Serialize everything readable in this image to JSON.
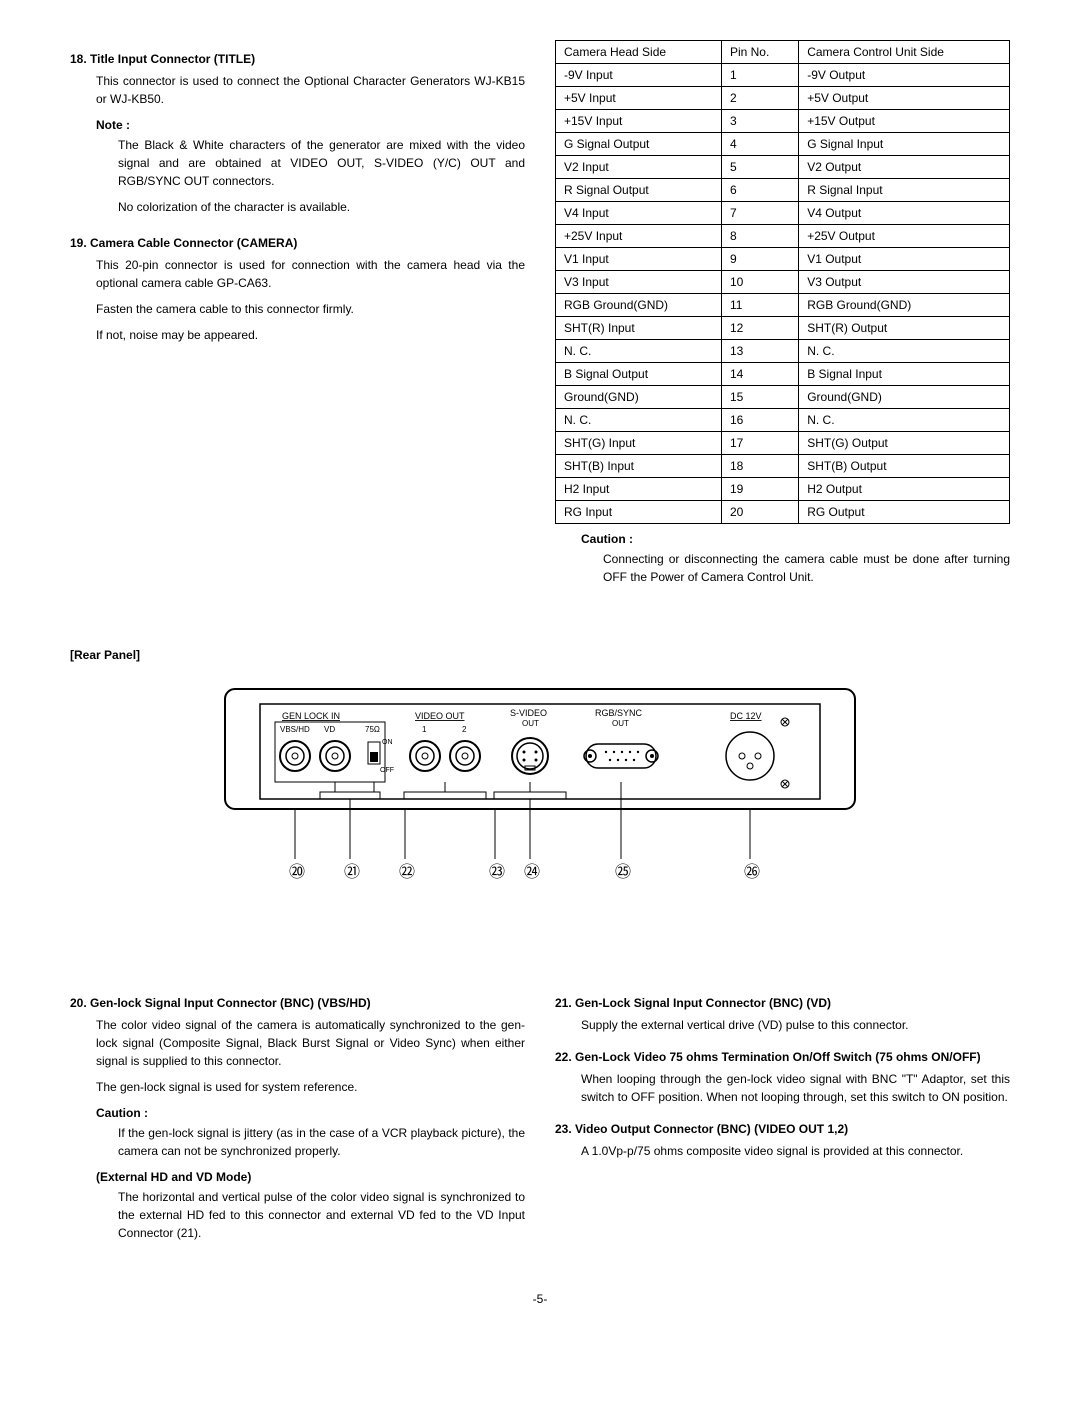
{
  "section18": {
    "title": "18. Title Input Connector (TITLE)",
    "body": "This connector is used to connect the Optional Character Generators WJ-KB15 or WJ-KB50.",
    "noteLabel": "Note :",
    "note1": "The Black & White characters of the generator are mixed with the video signal and are obtained at VIDEO OUT, S-VIDEO (Y/C) OUT and RGB/SYNC OUT connectors.",
    "note2": "No colorization of the character is available."
  },
  "section19": {
    "title": "19. Camera Cable Connector (CAMERA)",
    "body1": "This 20-pin connector is used for connection with the camera head via the optional camera cable GP-CA63.",
    "body2": "Fasten the camera cable to this connector firmly.",
    "body3": "If not, noise may be appeared."
  },
  "pinTable": {
    "headers": [
      "Camera Head Side",
      "Pin No.",
      "Camera Control Unit Side"
    ],
    "rows": [
      [
        "-9V Input",
        "1",
        "-9V Output"
      ],
      [
        "+5V Input",
        "2",
        "+5V Output"
      ],
      [
        "+15V Input",
        "3",
        "+15V Output"
      ],
      [
        "G Signal Output",
        "4",
        "G Signal Input"
      ],
      [
        "V2 Input",
        "5",
        "V2 Output"
      ],
      [
        "R Signal Output",
        "6",
        "R Signal Input"
      ],
      [
        "V4 Input",
        "7",
        "V4 Output"
      ],
      [
        "+25V Input",
        "8",
        "+25V Output"
      ],
      [
        "V1 Input",
        "9",
        "V1 Output"
      ],
      [
        "V3 Input",
        "10",
        "V3 Output"
      ],
      [
        "RGB Ground(GND)",
        "11",
        "RGB Ground(GND)"
      ],
      [
        "SHT(R) Input",
        "12",
        "SHT(R) Output"
      ],
      [
        "N. C.",
        "13",
        "N. C."
      ],
      [
        "B Signal Output",
        "14",
        "B Signal Input"
      ],
      [
        "Ground(GND)",
        "15",
        "Ground(GND)"
      ],
      [
        "N. C.",
        "16",
        "N. C."
      ],
      [
        "SHT(G) Input",
        "17",
        "SHT(G) Output"
      ],
      [
        "SHT(B) Input",
        "18",
        "SHT(B) Output"
      ],
      [
        "H2 Input",
        "19",
        "H2 Output"
      ],
      [
        "RG Input",
        "20",
        "RG Output"
      ]
    ]
  },
  "caution1": {
    "label": "Caution :",
    "text": "Connecting or disconnecting the camera cable must be done after turning OFF the Power of Camera Control Unit."
  },
  "rearPanel": {
    "label": "[Rear Panel]",
    "labels": {
      "genlock": "GEN LOCK IN",
      "vbshd": "VBS/HD",
      "vd": "VD",
      "r75": "75Ω",
      "on": "ON",
      "off": "OFF",
      "videoout": "VIDEO OUT",
      "v1": "1",
      "v2": "2",
      "svideo": "S-VIDEO\nOUT",
      "rgbsync": "RGB/SYNC\nOUT",
      "dc12v": "DC 12V"
    },
    "callouts": [
      "⑳",
      "㉑",
      "㉒",
      "㉓",
      "㉔",
      "㉕",
      "㉖"
    ]
  },
  "section20": {
    "title": "20. Gen-lock Signal Input Connector (BNC) (VBS/HD)",
    "body1": "The color video signal of the camera is automatically synchronized to the gen-lock signal (Composite Signal, Black Burst Signal or Video Sync) when either signal is supplied to this connector.",
    "body2": "The gen-lock signal is used for system reference.",
    "cautionLabel": "Caution :",
    "cautionText": "If the gen-lock signal is jittery (as in the case of a VCR playback picture), the camera can not be synchronized properly.",
    "extLabel": "(External HD and VD Mode)",
    "extText": "The horizontal and vertical pulse of the color video signal is synchronized to the external HD fed to this connector and external VD fed to the VD Input Connector (21)."
  },
  "section21": {
    "title": "21. Gen-Lock Signal Input Connector (BNC) (VD)",
    "body": "Supply the external vertical drive (VD) pulse to this connector."
  },
  "section22": {
    "title": "22. Gen-Lock Video 75 ohms Termination On/Off Switch (75 ohms ON/OFF)",
    "body": "When looping through the gen-lock video signal with BNC \"T\" Adaptor, set this switch to OFF position. When not looping through, set this switch to ON position."
  },
  "section23": {
    "title": "23. Video Output Connector (BNC) (VIDEO OUT 1,2)",
    "body": "A 1.0Vp-p/75 ohms composite video signal is provided at this connector."
  },
  "pageNum": "-5-"
}
